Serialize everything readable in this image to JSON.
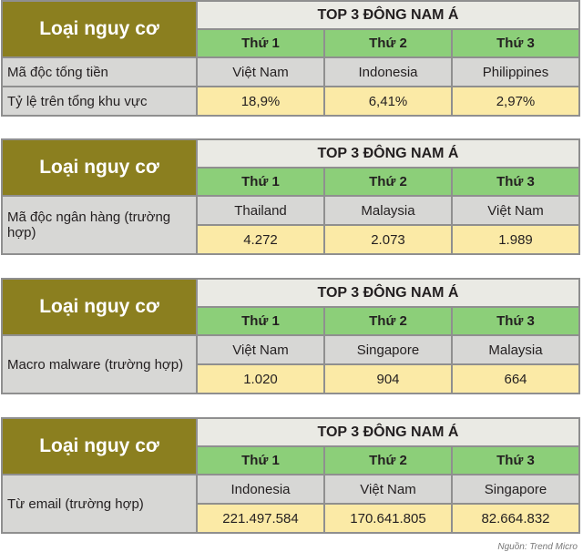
{
  "tables": [
    {
      "risk_header": "Loại nguy cơ",
      "top_header": "TOP 3 ĐÔNG NAM Á",
      "ranks": [
        "Thứ 1",
        "Thứ 2",
        "Thứ 3"
      ],
      "rows": [
        {
          "label": "Mã độc tống tiền",
          "values": [
            "Việt Nam",
            "Indonesia",
            "Philippines"
          ]
        },
        {
          "label": "Tỷ lệ trên tổng khu vực",
          "values": [
            "18,9%",
            "6,41%",
            "2,97%"
          ]
        }
      ]
    },
    {
      "risk_header": "Loại nguy cơ",
      "top_header": "TOP 3 ĐÔNG NAM Á",
      "ranks": [
        "Thứ 1",
        "Thứ 2",
        "Thứ 3"
      ],
      "label": "Mã độc ngân hàng (trường hợp)",
      "countries": [
        "Thailand",
        "Malaysia",
        "Việt Nam"
      ],
      "values": [
        "4.272",
        "2.073",
        "1.989"
      ]
    },
    {
      "risk_header": "Loại nguy cơ",
      "top_header": "TOP 3 ĐÔNG NAM Á",
      "ranks": [
        "Thứ 1",
        "Thứ 2",
        "Thứ 3"
      ],
      "label": "Macro malware (trường hợp)",
      "countries": [
        "Việt Nam",
        "Singapore",
        "Malaysia"
      ],
      "values": [
        "1.020",
        "904",
        "664"
      ]
    },
    {
      "risk_header": "Loại nguy cơ",
      "top_header": "TOP 3 ĐÔNG NAM Á",
      "ranks": [
        "Thứ 1",
        "Thứ 2",
        "Thứ 3"
      ],
      "label": "Từ email (trường hợp)",
      "countries": [
        "Indonesia",
        "Việt Nam",
        "Singapore"
      ],
      "values": [
        "221.497.584",
        "170.641.805",
        "82.664.832"
      ]
    }
  ],
  "credit": "Nguồn: Trend Micro"
}
